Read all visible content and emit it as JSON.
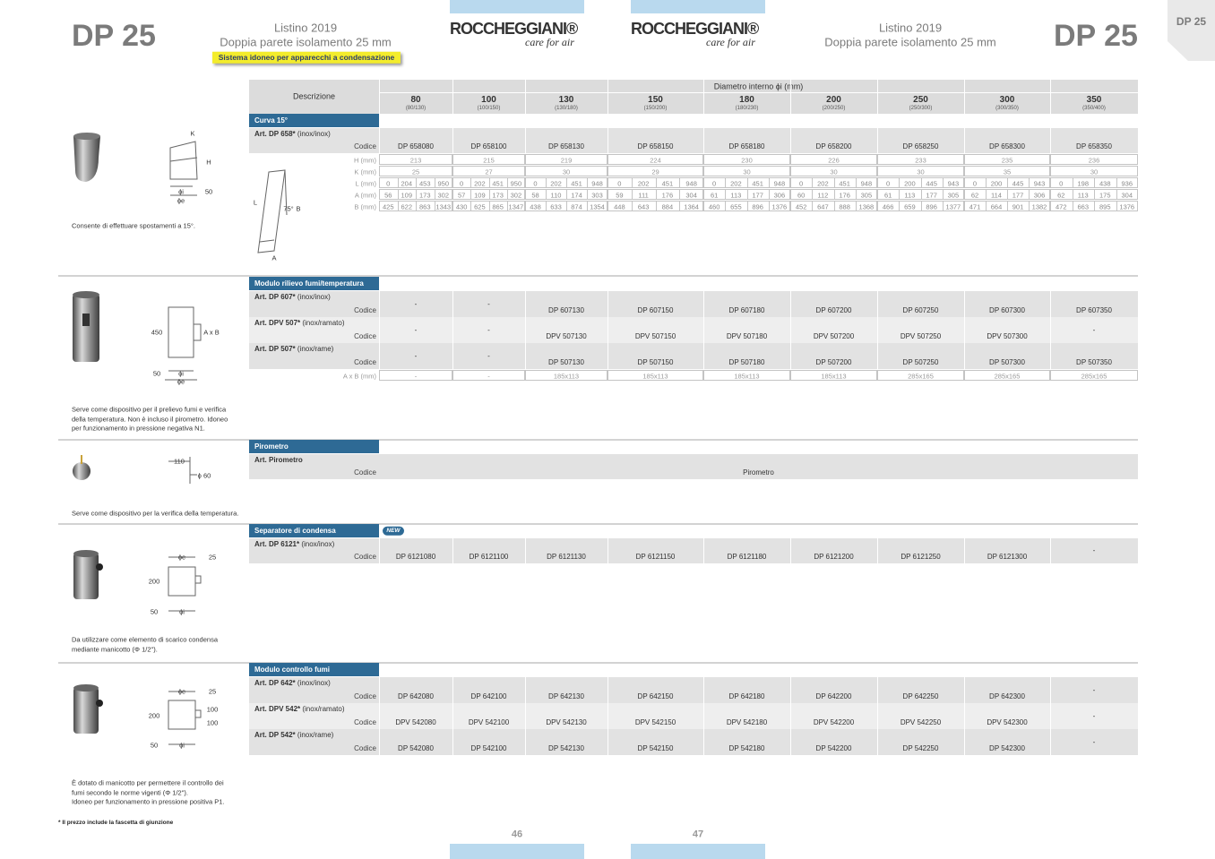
{
  "header": {
    "title": "DP 25",
    "pricelist": "Listino 2019",
    "subtitle": "Doppia parete isolamento 25 mm",
    "badge": "Sistema idoneo per apparecchi a condensazione",
    "logo": "ROCCHEGGIANI®",
    "tagline": "care for air"
  },
  "table": {
    "description_header": "Descrizione",
    "diameter_header": "Diametro interno ϕi (mm)",
    "code_label": "Codice",
    "columns": [
      {
        "diameter": "80",
        "outer": "(80/130)"
      },
      {
        "diameter": "100",
        "outer": "(100/150)"
      },
      {
        "diameter": "130",
        "outer": "(130/180)"
      },
      {
        "diameter": "150",
        "outer": "(150/200)"
      },
      {
        "diameter": "180",
        "outer": "(180/230)"
      },
      {
        "diameter": "200",
        "outer": "(200/250)"
      },
      {
        "diameter": "250",
        "outer": "(250/300)"
      },
      {
        "diameter": "300",
        "outer": "(300/350)"
      },
      {
        "diameter": "350",
        "outer": "(350/400)"
      }
    ]
  },
  "sections": [
    {
      "title": "Curva 15°",
      "articles": [
        {
          "name": "Art. DP 658*",
          "material": "(inox/inox)",
          "codes": [
            "DP 658080",
            "DP 658100",
            "DP 658130",
            "DP 658150",
            "DP 658180",
            "DP 658200",
            "DP 658250",
            "DP 658300",
            "DP 658350"
          ]
        }
      ],
      "dims": [
        {
          "label": "H (mm)",
          "values": [
            213,
            215,
            219,
            224,
            230,
            226,
            233,
            235,
            236
          ]
        },
        {
          "label": "K (mm)",
          "values": [
            25,
            27,
            30,
            29,
            30,
            30,
            30,
            35,
            30
          ]
        },
        {
          "label": "L (mm)",
          "values": [
            [
              0,
              204,
              453,
              950
            ],
            [
              0,
              202,
              451,
              950
            ],
            [
              0,
              202,
              451,
              948
            ],
            [
              0,
              202,
              451,
              948
            ],
            [
              0,
              202,
              451,
              948
            ],
            [
              0,
              202,
              451,
              948
            ],
            [
              0,
              200,
              445,
              943
            ],
            [
              0,
              200,
              445,
              943
            ],
            [
              0,
              198,
              438,
              936
            ]
          ]
        },
        {
          "label": "A (mm)",
          "values": [
            [
              56,
              109,
              173,
              302
            ],
            [
              57,
              109,
              173,
              302
            ],
            [
              58,
              110,
              174,
              303
            ],
            [
              59,
              111,
              176,
              304
            ],
            [
              61,
              113,
              177,
              306
            ],
            [
              60,
              112,
              176,
              305
            ],
            [
              61,
              113,
              177,
              305
            ],
            [
              62,
              114,
              177,
              306
            ],
            [
              62,
              113,
              175,
              304
            ]
          ]
        },
        {
          "label": "B (mm)",
          "values": [
            [
              425,
              622,
              863,
              1343
            ],
            [
              430,
              625,
              865,
              1347
            ],
            [
              438,
              633,
              874,
              1354
            ],
            [
              448,
              643,
              884,
              1364
            ],
            [
              460,
              655,
              896,
              1376
            ],
            [
              452,
              647,
              888,
              1368
            ],
            [
              466,
              659,
              896,
              1377
            ],
            [
              471,
              664,
              901,
              1382
            ],
            [
              472,
              663,
              895,
              1376
            ]
          ]
        }
      ],
      "description": [
        "Consente di effettuare spostamenti a 15°."
      ],
      "diagram_labels": [
        "K",
        "H",
        "50",
        "ϕi",
        "ϕe",
        "L",
        "75°",
        "B",
        "A"
      ]
    },
    {
      "title": "Modulo rilievo fumi/temperatura",
      "articles": [
        {
          "name": "Art. DP 607*",
          "material": "(inox/inox)",
          "codes": [
            "-",
            "-",
            "DP 607130",
            "DP 607150",
            "DP 607180",
            "DP 607200",
            "DP 607250",
            "DP 607300",
            "DP 607350"
          ]
        },
        {
          "name": "Art. DPV 507*",
          "material": "(inox/ramato)",
          "codes": [
            "-",
            "-",
            "DPV 507130",
            "DPV 507150",
            "DPV 507180",
            "DPV 507200",
            "DPV 507250",
            "DPV 507300",
            "-"
          ]
        },
        {
          "name": "Art. DP 507*",
          "material": "(inox/rame)",
          "codes": [
            "-",
            "-",
            "DP 507130",
            "DP 507150",
            "DP 507180",
            "DP 507200",
            "DP 507250",
            "DP 507300",
            "DP 507350"
          ]
        }
      ],
      "dims": [
        {
          "label": "A x B (mm)",
          "values": [
            "-",
            "-",
            "185x113",
            "185x113",
            "185x113",
            "185x113",
            "285x165",
            "285x165",
            "285x165"
          ]
        }
      ],
      "description": [
        "Serve come dispositivo per il prelievo fumi e verifica",
        "della temperatura. Non è incluso il pirometro. Idoneo",
        "per funzionamento in pressione negativa N1."
      ],
      "diagram_labels": [
        "450",
        "A x B",
        "50",
        "ϕi",
        "ϕe"
      ]
    },
    {
      "title": "Pirometro",
      "articles": [
        {
          "name": "Art. Pirometro",
          "code": "Pirometro"
        }
      ],
      "dims": [],
      "description": [
        "Serve come dispositivo per la verifica della temperatura."
      ],
      "diagram_labels": [
        "110",
        "ϕ 60"
      ]
    },
    {
      "title": "Separatore di condensa",
      "badge": "NEW",
      "articles": [
        {
          "name": "Art. DP 6121*",
          "material": "(inox/inox)",
          "codes": [
            "DP 6121080",
            "DP 6121100",
            "DP 6121130",
            "DP 6121150",
            "DP 6121180",
            "DP 6121200",
            "DP 6121250",
            "DP 6121300",
            "-"
          ]
        }
      ],
      "dims": [],
      "description": [
        "Da utilizzare come elemento di scarico condensa",
        "mediante manicotto (Φ 1/2\")."
      ],
      "diagram_labels": [
        "ϕe",
        "25",
        "200",
        "50",
        "ϕi"
      ]
    },
    {
      "title": "Modulo controllo fumi",
      "articles": [
        {
          "name": "Art. DP 642*",
          "material": "(inox/inox)",
          "codes": [
            "DP 642080",
            "DP 642100",
            "DP 642130",
            "DP 642150",
            "DP 642180",
            "DP 642200",
            "DP 642250",
            "DP 642300",
            "-"
          ]
        },
        {
          "name": "Art. DPV 542*",
          "material": "(inox/ramato)",
          "codes": [
            "DPV 542080",
            "DPV 542100",
            "DPV 542130",
            "DPV 542150",
            "DPV 542180",
            "DPV 542200",
            "DPV 542250",
            "DPV 542300",
            "-"
          ]
        },
        {
          "name": "Art. DP 542*",
          "material": "(inox/rame)",
          "codes": [
            "DP 542080",
            "DP 542100",
            "DP 542130",
            "DP 542150",
            "DP 542180",
            "DP 542200",
            "DP 542250",
            "DP 542300",
            "-"
          ]
        }
      ],
      "dims": [],
      "description": [
        "È dotato di manicotto per permettere il controllo dei",
        "fumi secondo le norme vigenti (Φ 1/2\").",
        "Idoneo per funzionamento in pressione positiva P1."
      ],
      "diagram_labels": [
        "ϕe",
        "25",
        "100",
        "200",
        "100",
        "50",
        "ϕi"
      ]
    }
  ],
  "footer": {
    "note": "* Il prezzo include la fascetta di giunzione",
    "pages": [
      "46",
      "47"
    ]
  }
}
